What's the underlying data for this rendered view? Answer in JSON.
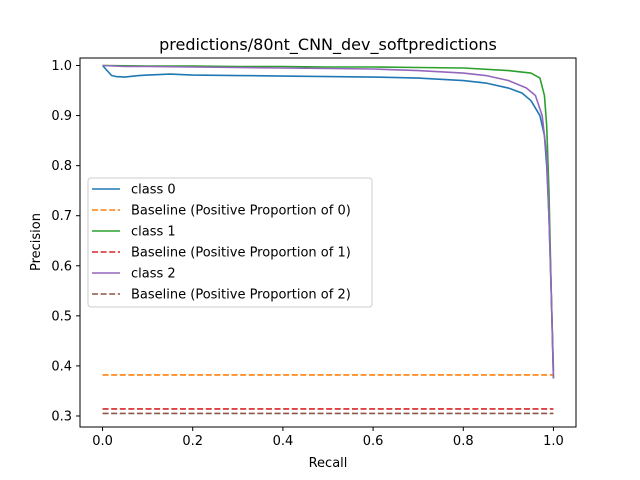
{
  "chart_data": {
    "type": "line",
    "title": "predictions/80nt_CNN_dev_softpredictions",
    "xlabel": "Recall",
    "ylabel": "Precision",
    "xlim": [
      -0.05,
      1.05
    ],
    "ylim": [
      0.278,
      1.015
    ],
    "xticks": [
      0.0,
      0.2,
      0.4,
      0.6,
      0.8,
      1.0
    ],
    "xtick_labels": [
      "0.0",
      "0.2",
      "0.4",
      "0.6",
      "0.8",
      "1.0"
    ],
    "yticks": [
      0.3,
      0.4,
      0.5,
      0.6,
      0.7,
      0.8,
      0.9,
      1.0
    ],
    "ytick_labels": [
      "0.3",
      "0.4",
      "0.5",
      "0.6",
      "0.7",
      "0.8",
      "0.9",
      "1.0"
    ],
    "grid": false,
    "legend_position": "center-left",
    "series": [
      {
        "name": "class 0",
        "style": "solid",
        "color": "#1f77b4",
        "x": [
          0.0,
          0.005,
          0.01,
          0.015,
          0.02,
          0.03,
          0.05,
          0.08,
          0.1,
          0.15,
          0.2,
          0.3,
          0.4,
          0.5,
          0.6,
          0.7,
          0.8,
          0.85,
          0.9,
          0.93,
          0.95,
          0.97,
          0.98,
          0.985,
          0.99,
          0.995,
          1.0
        ],
        "y": [
          1.0,
          0.995,
          0.99,
          0.985,
          0.98,
          0.978,
          0.977,
          0.98,
          0.981,
          0.983,
          0.981,
          0.98,
          0.979,
          0.978,
          0.977,
          0.975,
          0.97,
          0.965,
          0.955,
          0.945,
          0.93,
          0.9,
          0.86,
          0.8,
          0.7,
          0.55,
          0.39
        ]
      },
      {
        "name": "Baseline (Positive Proportion of 0)",
        "style": "dashed",
        "color": "#ff7f0e",
        "x": [
          0.0,
          1.0
        ],
        "y": [
          0.382,
          0.382
        ]
      },
      {
        "name": "class 1",
        "style": "solid",
        "color": "#2ca02c",
        "x": [
          0.0,
          0.1,
          0.2,
          0.3,
          0.4,
          0.5,
          0.6,
          0.7,
          0.8,
          0.9,
          0.95,
          0.97,
          0.98,
          0.985,
          0.99,
          0.995,
          1.0
        ],
        "y": [
          1.0,
          0.999,
          0.999,
          0.998,
          0.998,
          0.997,
          0.997,
          0.996,
          0.995,
          0.99,
          0.985,
          0.975,
          0.94,
          0.88,
          0.75,
          0.55,
          0.375
        ]
      },
      {
        "name": "Baseline (Positive Proportion of 1)",
        "style": "dashed",
        "color": "#d62728",
        "x": [
          0.0,
          1.0
        ],
        "y": [
          0.314,
          0.314
        ]
      },
      {
        "name": "class 2",
        "style": "solid",
        "color": "#9467bd",
        "x": [
          0.0,
          0.05,
          0.1,
          0.2,
          0.3,
          0.4,
          0.5,
          0.6,
          0.7,
          0.8,
          0.85,
          0.9,
          0.94,
          0.96,
          0.975,
          0.985,
          0.99,
          0.995,
          1.0
        ],
        "y": [
          1.0,
          0.998,
          0.998,
          0.997,
          0.996,
          0.995,
          0.994,
          0.993,
          0.99,
          0.985,
          0.98,
          0.97,
          0.955,
          0.94,
          0.9,
          0.82,
          0.7,
          0.55,
          0.375
        ]
      },
      {
        "name": "Baseline (Positive Proportion of 2)",
        "style": "dashed",
        "color": "#8c564b",
        "x": [
          0.0,
          1.0
        ],
        "y": [
          0.305,
          0.305
        ]
      }
    ]
  }
}
